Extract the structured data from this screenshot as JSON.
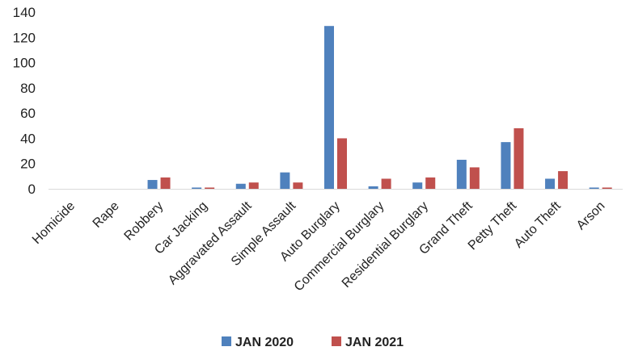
{
  "chart_data": {
    "type": "bar",
    "categories": [
      "Homicide",
      "Rape",
      "Robbery",
      "Car Jacking",
      "Aggravated Assault",
      "Simple Assault",
      "Auto Burglary",
      "Commercial Burglary",
      "Residential Burglary",
      "Grand Theft",
      "Petty Theft",
      "Auto Theft",
      "Arson"
    ],
    "series": [
      {
        "name": "JAN 2020",
        "color": "#4f81bd",
        "values": [
          0,
          0,
          7,
          1,
          4,
          13,
          129,
          2,
          5,
          23,
          37,
          8,
          1
        ]
      },
      {
        "name": "JAN 2021",
        "color": "#c0504d",
        "values": [
          0,
          0,
          9,
          1,
          5,
          5,
          40,
          8,
          9,
          17,
          48,
          14,
          1
        ]
      }
    ],
    "y_ticks": [
      "0",
      "20",
      "40",
      "60",
      "80",
      "100",
      "120",
      "140"
    ],
    "ylim": [
      0,
      140
    ],
    "grid": false,
    "legend_position": "bottom"
  }
}
